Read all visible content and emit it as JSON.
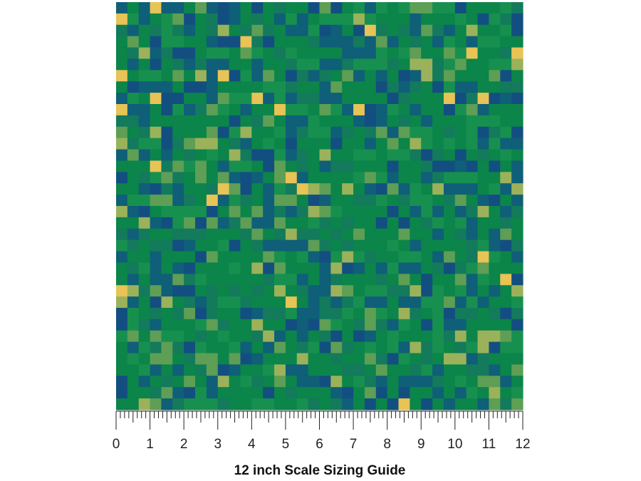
{
  "ruler": {
    "labels": [
      "0",
      "1",
      "2",
      "3",
      "4",
      "5",
      "6",
      "7",
      "8",
      "9",
      "10",
      "11",
      "12"
    ]
  },
  "caption": "12 inch Scale Sizing Guide"
}
